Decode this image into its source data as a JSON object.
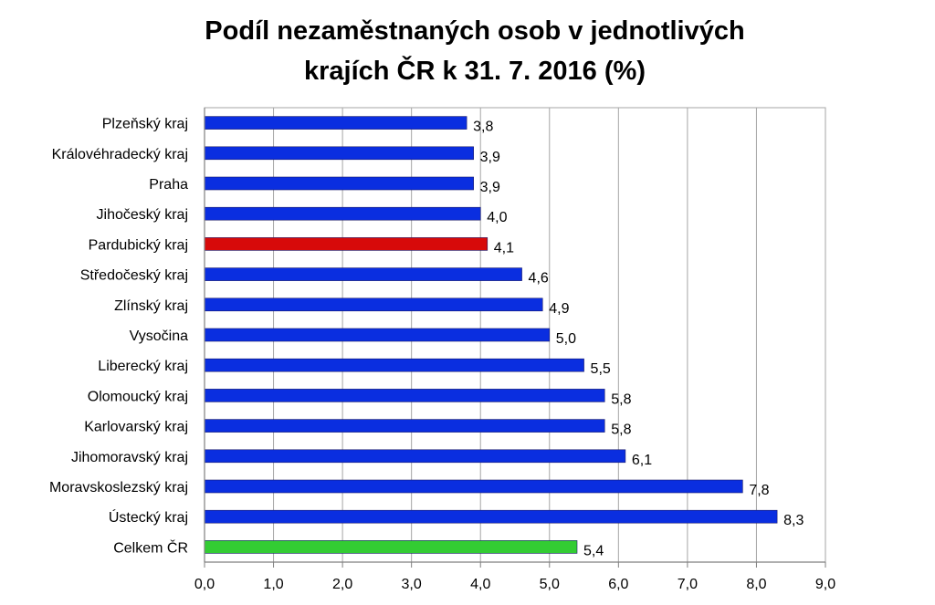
{
  "chart_data": {
    "type": "bar",
    "orientation": "horizontal",
    "title_lines": [
      "Podíl nezaměstnaných osob v jednotlivých",
      "krajích ČR k 31. 7. 2016 (%)"
    ],
    "categories": [
      "Plzeňský kraj",
      "Královéhradecký kraj",
      "Praha",
      "Jihočeský kraj",
      "Pardubický kraj",
      "Středočeský kraj",
      "Zlínský kraj",
      "Vysočina",
      "Liberecký kraj",
      "Olomoucký kraj",
      "Karlovarský kraj",
      "Jihomoravský kraj",
      "Moravskoslezský kraj",
      "Ústecký kraj",
      "Celkem ČR"
    ],
    "values": [
      3.8,
      3.9,
      3.9,
      4.0,
      4.1,
      4.6,
      4.9,
      5.0,
      5.5,
      5.8,
      5.8,
      6.1,
      7.8,
      8.3,
      5.4
    ],
    "value_labels": [
      "3,8",
      "3,9",
      "3,9",
      "4,0",
      "4,1",
      "4,6",
      "4,9",
      "5,0",
      "5,5",
      "5,8",
      "5,8",
      "6,1",
      "7,8",
      "8,3",
      "5,4"
    ],
    "bar_colors": [
      "#0a2ee0",
      "#0a2ee0",
      "#0a2ee0",
      "#0a2ee0",
      "#d70a0a",
      "#0a2ee0",
      "#0a2ee0",
      "#0a2ee0",
      "#0a2ee0",
      "#0a2ee0",
      "#0a2ee0",
      "#0a2ee0",
      "#0a2ee0",
      "#0a2ee0",
      "#33cc33"
    ],
    "xlim": [
      0,
      9
    ],
    "x_ticks": [
      "0,0",
      "1,0",
      "2,0",
      "3,0",
      "4,0",
      "5,0",
      "6,0",
      "7,0",
      "8,0",
      "9,0"
    ],
    "grid": "vertical",
    "legend": "none",
    "xlabel": "",
    "ylabel": ""
  }
}
